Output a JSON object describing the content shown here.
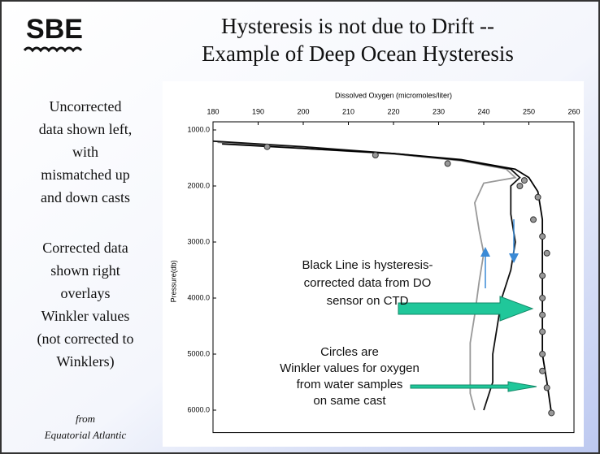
{
  "logo": "SBE",
  "title_lines": [
    "Hysteresis is not due to Drift --",
    "Example of Deep Ocean Hysteresis"
  ],
  "left_text_1": [
    "Uncorrected",
    "data shown left,",
    "with",
    "mismatched up",
    "and down casts"
  ],
  "left_text_2": [
    "Corrected data",
    "shown right",
    "overlays",
    "Winkler values",
    "(not corrected to",
    "Winklers)"
  ],
  "source": [
    "from",
    "Equatorial Atlantic"
  ],
  "chart_data": {
    "type": "line",
    "x_label": "Dissolved Oxygen (micromoles/liter)",
    "y_label": "Pressure(db)",
    "xlim": [
      180,
      260
    ],
    "xticks": [
      180,
      190,
      200,
      210,
      220,
      230,
      240,
      250,
      260
    ],
    "ylim": [
      1000,
      6400
    ],
    "yticks": [
      {
        "value": 1000,
        "label": "1000.0"
      },
      {
        "value": 2000,
        "label": "2000.0"
      },
      {
        "value": 3000,
        "label": "3000.0"
      },
      {
        "value": 4000,
        "label": "4000.0"
      },
      {
        "value": 5000,
        "label": "5000.0"
      },
      {
        "value": 6000,
        "label": "6000.0"
      }
    ],
    "y_inverted": true,
    "series": [
      {
        "color": "#999999",
        "marker": "line",
        "x": [
          181,
          200,
          220,
          235,
          245,
          247,
          240,
          238,
          239,
          240,
          239,
          238,
          237,
          237,
          237,
          238
        ],
        "values": [
          1220,
          1330,
          1430,
          1550,
          1700,
          1850,
          1950,
          2300,
          2800,
          3200,
          3700,
          4300,
          4800,
          5300,
          5700,
          6000
        ]
      },
      {
        "color": "#111111",
        "marker": "line",
        "x": [
          180,
          200,
          220,
          235,
          246,
          248,
          246,
          246,
          247,
          246,
          244,
          243,
          242,
          242,
          240
        ],
        "values": [
          1200,
          1300,
          1420,
          1540,
          1700,
          1850,
          2000,
          2500,
          3000,
          3500,
          4000,
          4500,
          5000,
          5500,
          6000
        ]
      },
      {
        "color": "#000000",
        "marker": "line",
        "x": [
          182,
          200,
          220,
          235,
          247,
          250,
          252,
          253,
          253,
          253,
          253,
          253,
          253,
          254,
          255
        ],
        "values": [
          1250,
          1330,
          1420,
          1530,
          1700,
          1850,
          2100,
          2600,
          3000,
          3500,
          4000,
          4500,
          5000,
          5500,
          6050
        ]
      },
      {
        "color": "#999999",
        "marker": "circle",
        "x": [
          192,
          216,
          232,
          249,
          248,
          252,
          251,
          253,
          254,
          253,
          253,
          253,
          253,
          253,
          253,
          254,
          255
        ],
        "values": [
          1300,
          1450,
          1600,
          1900,
          2000,
          2200,
          2600,
          2900,
          3200,
          3600,
          4000,
          4300,
          4600,
          5000,
          5300,
          5600,
          6050
        ]
      }
    ],
    "annotation_1": [
      "Black Line is hysteresis-",
      "corrected data from DO",
      "sensor on CTD"
    ],
    "annotation_2": [
      "Circles are",
      "Winkler values for oxygen",
      "from water samples",
      "on same cast"
    ]
  }
}
